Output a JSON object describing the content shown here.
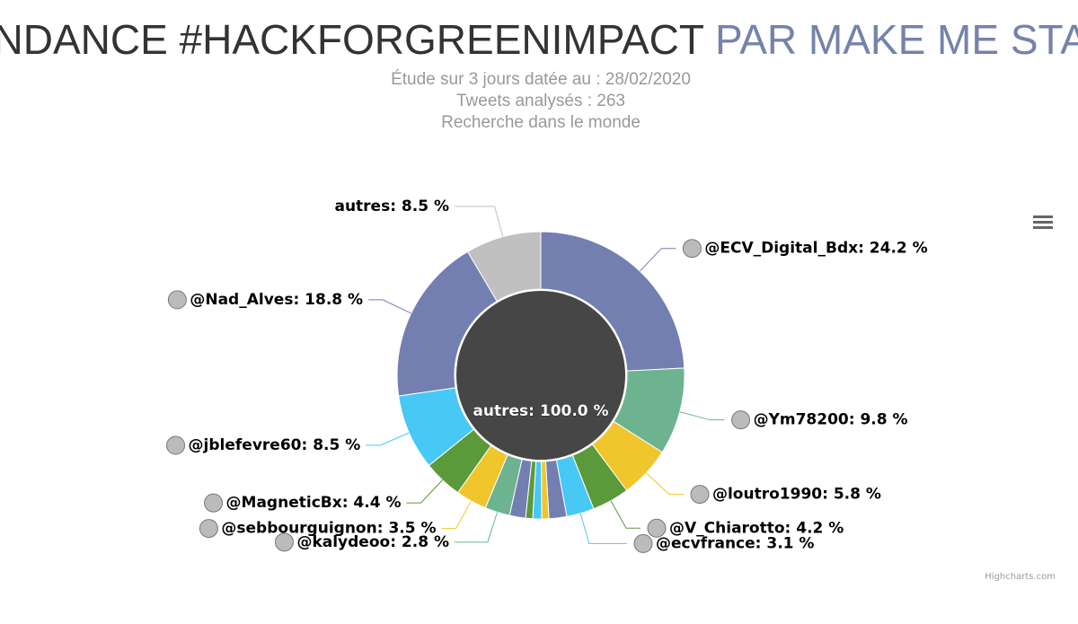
{
  "chart_data": {
    "type": "sunburst",
    "title": "TENDANCE #HACKFORGREENIMPACT",
    "title_suffix": "PAR MAKE ME STATS",
    "subtitle": [
      "Étude sur 3 jours datée au : 28/02/2020",
      "Tweets analysés : 263",
      "Recherche dans le monde"
    ],
    "center": {
      "name": "autres",
      "value": 100.0,
      "value_label": "100.0 %",
      "color": "#464646"
    },
    "label_separator": ": ",
    "categories": [
      "@ECV_Digital_Bdx",
      "@Ym78200",
      "@loutro1990",
      "@V_Chiarotto",
      "@ecvfrance",
      null,
      null,
      null,
      null,
      null,
      "@kalydeoo",
      "@sebbourguignon",
      "@MagneticBx",
      "@jblefevre60",
      "@Nad_Alves",
      "autres"
    ],
    "values": [
      24.2,
      9.8,
      5.8,
      4.2,
      3.1,
      2.0,
      0.8,
      1.0,
      0.8,
      1.8,
      2.8,
      3.5,
      4.4,
      8.5,
      18.8,
      8.5
    ],
    "value_labels": [
      "24.2 %",
      "9.8 %",
      "5.8 %",
      "4.2 %",
      "3.1 %",
      null,
      null,
      null,
      null,
      null,
      "2.8 %",
      "3.5 %",
      "4.4 %",
      "8.5 %",
      "18.8 %",
      "8.5 %"
    ],
    "colors": [
      "#737fb1",
      "#6db38f",
      "#f0c62c",
      "#5a9a3a",
      "#48c8f5",
      "#737fb1",
      "#f0c62c",
      "#48c8f5",
      "#5a9a3a",
      "#737fb1",
      "#6db38f",
      "#f0c62c",
      "#5a9a3a",
      "#48c8f5",
      "#737fb1",
      "#c0c0c0"
    ],
    "credits": "Highcharts.com"
  }
}
